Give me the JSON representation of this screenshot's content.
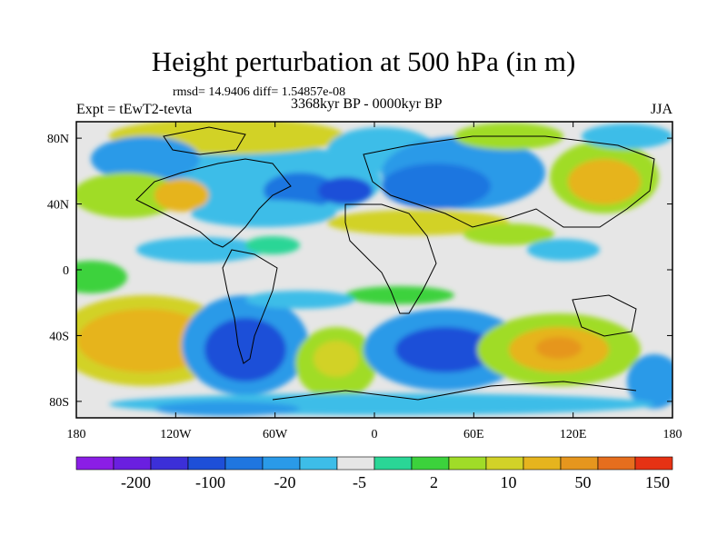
{
  "title": "Height perturbation at 500 hPa (in m)",
  "stats": "rmsd= 14.9406 diff= 1.54857e-08",
  "period": "3368kyr BP - 0000kyr BP",
  "experiment": "Expt = tEwT2-tevta",
  "season": "JJA",
  "map": {
    "lon_ticks": [
      "180",
      "120W",
      "60W",
      "0",
      "60E",
      "120E",
      "180"
    ],
    "lat_ticks": [
      "80N",
      "40N",
      "0",
      "40S",
      "80S"
    ]
  },
  "colorbar": {
    "colors": [
      "#8b1ee6",
      "#6a1fe0",
      "#3c2fd8",
      "#1e4fd8",
      "#1f76e0",
      "#2a9ae8",
      "#3dbde8",
      "#e6e6e6",
      "#2ad696",
      "#3cd23c",
      "#a0dc28",
      "#d2d228",
      "#e6b41e",
      "#e6961e",
      "#e66e1e",
      "#e63214"
    ],
    "labels": [
      "-200",
      "-100",
      "-20",
      "-5",
      "2",
      "10",
      "50",
      "150"
    ]
  }
}
